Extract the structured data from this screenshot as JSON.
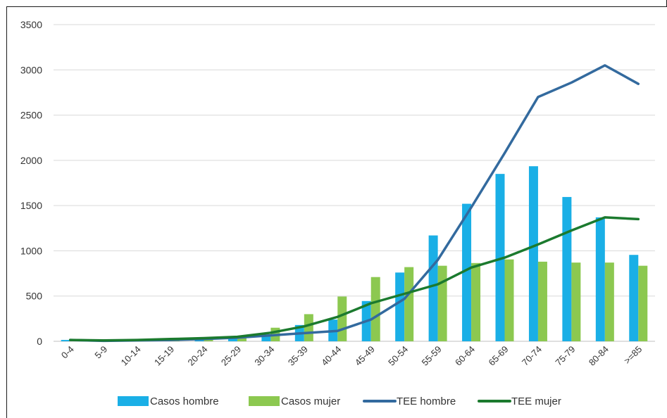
{
  "chart_data": {
    "type": "bar",
    "categories": [
      "0-4",
      "5-9",
      "10-14",
      "15-19",
      "20-24",
      "25-29",
      "30-34",
      "35-39",
      "40-44",
      "45-49",
      "50-54",
      "55-59",
      "60-64",
      "65-69",
      "70-74",
      "75-79",
      "80-84",
      ">=85"
    ],
    "series": [
      {
        "name": "Casos hombre",
        "type": "bar",
        "color": "#1aafe6",
        "values": [
          15,
          5,
          10,
          20,
          35,
          40,
          75,
          180,
          240,
          445,
          760,
          1170,
          1520,
          1850,
          1935,
          1595,
          1370,
          955
        ]
      },
      {
        "name": "Casos mujer",
        "type": "bar",
        "color": "#8cc850",
        "values": [
          10,
          5,
          10,
          20,
          30,
          45,
          150,
          300,
          495,
          710,
          820,
          835,
          865,
          905,
          880,
          870,
          870,
          835
        ]
      },
      {
        "name": "TEE hombre",
        "type": "line",
        "color": "#336a9e",
        "values": [
          15,
          5,
          10,
          15,
          25,
          40,
          65,
          90,
          115,
          240,
          470,
          900,
          1480,
          2080,
          2700,
          2860,
          3050,
          2845
        ]
      },
      {
        "name": "TEE mujer",
        "type": "line",
        "color": "#1b7a2e",
        "values": [
          15,
          10,
          15,
          25,
          35,
          50,
          95,
          165,
          270,
          420,
          525,
          630,
          815,
          925,
          1070,
          1225,
          1370,
          1350
        ]
      }
    ],
    "y_ticks": [
      "0",
      "500",
      "1000",
      "1500",
      "2000",
      "2500",
      "3000",
      "3500"
    ],
    "ylim": [
      0,
      3500
    ],
    "grid": true,
    "legend_position": "bottom"
  }
}
